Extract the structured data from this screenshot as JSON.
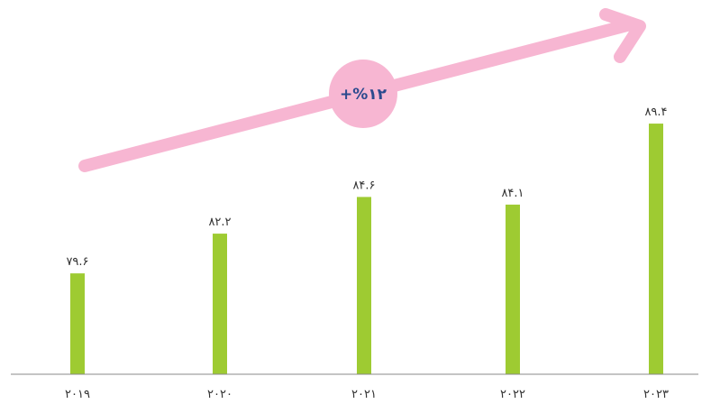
{
  "chart_data": {
    "type": "bar",
    "categories": [
      "۲۰۱۹",
      "۲۰۲۰",
      "۲۰۲۱",
      "۲۰۲۲",
      "۲۰۲۳"
    ],
    "values": [
      79.6,
      82.2,
      84.6,
      84.1,
      89.4
    ],
    "value_labels": [
      "۷۹.۶",
      "۸۲.۲",
      "۸۴.۶",
      "۸۴.۱",
      "۸۹.۴"
    ],
    "ylim": [
      73,
      92
    ],
    "grid": false,
    "legend": "none",
    "annotation": {
      "text": "+%۱۲"
    }
  },
  "colors": {
    "bar": "#9ECB32",
    "arrow": "#F7B6D2",
    "badge_text": "#2B4A8E",
    "axis": "#888888"
  }
}
